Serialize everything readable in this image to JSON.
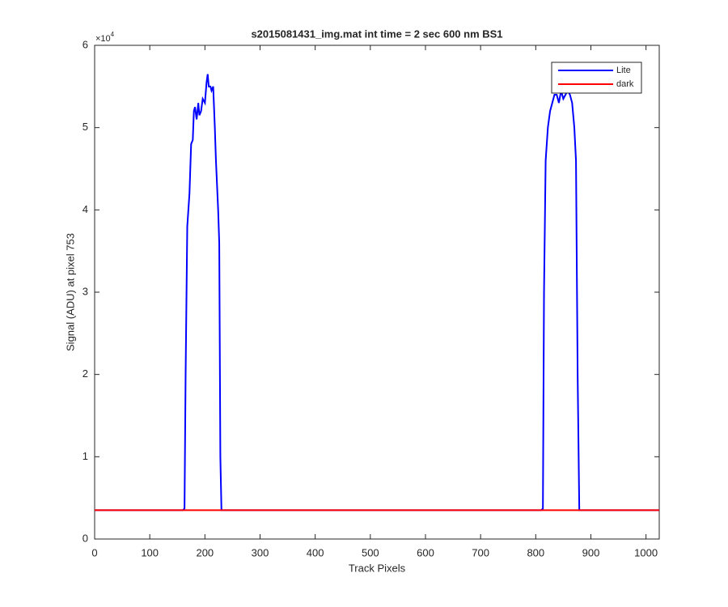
{
  "chart_data": {
    "type": "line",
    "title": "s2015081431_img.mat int time = 2 sec  600 nm BS1",
    "x_label": "Track Pixels",
    "y_label": "Signal (ADU) at pixel 753",
    "y_exponent": {
      "base": "×10",
      "exponent": "4"
    },
    "xlim": [
      0,
      1024
    ],
    "xticks": [
      0,
      100,
      200,
      300,
      400,
      500,
      600,
      700,
      800,
      900,
      1000
    ],
    "ylim": [
      0,
      60000
    ],
    "yticks": [
      {
        "value": 0,
        "label": "0"
      },
      {
        "value": 10000,
        "label": "1"
      },
      {
        "value": 20000,
        "label": "2"
      },
      {
        "value": 30000,
        "label": "3"
      },
      {
        "value": 40000,
        "label": "4"
      },
      {
        "value": 50000,
        "label": "5"
      },
      {
        "value": 60000,
        "label": "6"
      }
    ],
    "legend": "upper right",
    "series": [
      {
        "name": "Lite",
        "color": "#0000ff",
        "x": [
          0,
          160,
          163,
          165,
          168,
          172,
          175,
          178,
          180,
          182,
          185,
          188,
          190,
          193,
          196,
          200,
          203,
          205,
          207,
          210,
          212,
          215,
          218,
          220,
          224,
          226,
          228,
          230,
          810,
          813,
          815,
          818,
          822,
          826,
          830,
          834,
          838,
          842,
          846,
          850,
          854,
          858,
          862,
          866,
          870,
          873,
          876,
          879,
          1024
        ],
        "values": [
          3500,
          3500,
          3700,
          20000,
          38000,
          42000,
          48000,
          48500,
          52000,
          52500,
          51000,
          53000,
          51500,
          52000,
          53500,
          53000,
          55500,
          56500,
          55000,
          55000,
          54500,
          55000,
          50000,
          46000,
          40000,
          36000,
          10000,
          3500,
          3500,
          3700,
          30000,
          46000,
          50000,
          52000,
          53000,
          54000,
          54000,
          53000,
          54500,
          53500,
          54000,
          54500,
          54000,
          53000,
          50000,
          46000,
          20000,
          3500,
          3500
        ]
      },
      {
        "name": "dark",
        "color": "#ff0000",
        "x": [
          0,
          256,
          512,
          768,
          1024
        ],
        "values": [
          3500,
          3500,
          3500,
          3500,
          3500
        ]
      }
    ]
  }
}
